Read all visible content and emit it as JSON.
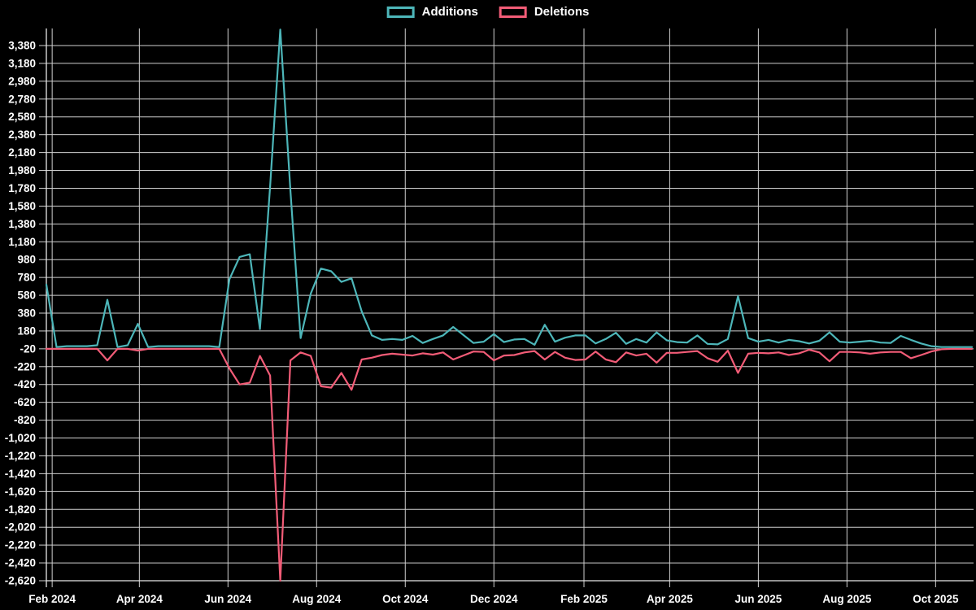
{
  "legend": {
    "additions_label": "Additions",
    "deletions_label": "Deletions"
  },
  "colors": {
    "background": "#000000",
    "additions": "#4db6b9",
    "deletions": "#f25c77",
    "grid": "#cfcfcf",
    "axis": "#e8e8e8",
    "label": "#ffffff"
  },
  "chart_data": {
    "type": "line",
    "title": "",
    "xlabel": "",
    "ylabel": "",
    "grid": true,
    "legend_position": "top-center",
    "ylim": [
      -2620,
      3560
    ],
    "y_ticks": [
      3380,
      3180,
      2980,
      2780,
      2580,
      2380,
      2180,
      1980,
      1780,
      1580,
      1380,
      1180,
      980,
      780,
      580,
      380,
      180,
      -20,
      -220,
      -420,
      -620,
      -820,
      -1020,
      -1220,
      -1420,
      -1620,
      -1820,
      -2020,
      -2220,
      -2420,
      -2620
    ],
    "x_ticks": [
      {
        "label": "Feb 2024",
        "week": 0.571
      },
      {
        "label": "Apr 2024",
        "week": 9.143
      },
      {
        "label": "Jun 2024",
        "week": 17.857
      },
      {
        "label": "Aug 2024",
        "week": 26.571
      },
      {
        "label": "Oct 2024",
        "week": 35.286
      },
      {
        "label": "Dec 2024",
        "week": 44.0
      },
      {
        "label": "Feb 2025",
        "week": 52.857
      },
      {
        "label": "Apr 2025",
        "week": 61.286
      },
      {
        "label": "Jun 2025",
        "week": 70.0
      },
      {
        "label": "Aug 2025",
        "week": 78.714
      },
      {
        "label": "Oct 2025",
        "week": 87.429
      }
    ],
    "x": [
      "2024-01-28",
      "2024-02-04",
      "2024-02-11",
      "2024-02-18",
      "2024-02-25",
      "2024-03-03",
      "2024-03-10",
      "2024-03-17",
      "2024-03-24",
      "2024-03-31",
      "2024-04-07",
      "2024-04-14",
      "2024-04-21",
      "2024-04-28",
      "2024-05-05",
      "2024-05-12",
      "2024-05-19",
      "2024-05-26",
      "2024-06-02",
      "2024-06-09",
      "2024-06-16",
      "2024-06-23",
      "2024-06-30",
      "2024-07-07",
      "2024-07-14",
      "2024-07-21",
      "2024-07-28",
      "2024-08-04",
      "2024-08-11",
      "2024-08-18",
      "2024-08-25",
      "2024-09-01",
      "2024-09-08",
      "2024-09-15",
      "2024-09-22",
      "2024-09-29",
      "2024-10-06",
      "2024-10-13",
      "2024-10-20",
      "2024-10-27",
      "2024-11-03",
      "2024-11-10",
      "2024-11-17",
      "2024-11-24",
      "2024-12-01",
      "2024-12-08",
      "2024-12-15",
      "2024-12-22",
      "2024-12-29",
      "2025-01-05",
      "2025-01-12",
      "2025-01-19",
      "2025-01-26",
      "2025-02-02",
      "2025-02-09",
      "2025-02-16",
      "2025-02-23",
      "2025-03-02",
      "2025-03-09",
      "2025-03-16",
      "2025-03-23",
      "2025-03-30",
      "2025-04-06",
      "2025-04-13",
      "2025-04-20",
      "2025-04-27",
      "2025-05-04",
      "2025-05-11",
      "2025-05-18",
      "2025-05-25",
      "2025-06-01",
      "2025-06-08",
      "2025-06-15",
      "2025-06-22",
      "2025-06-29",
      "2025-07-06",
      "2025-07-13",
      "2025-07-20",
      "2025-07-27",
      "2025-08-03",
      "2025-08-10",
      "2025-08-17",
      "2025-08-24",
      "2025-08-31",
      "2025-09-07",
      "2025-09-14",
      "2025-09-21",
      "2025-09-28",
      "2025-10-05",
      "2025-10-12",
      "2025-10-19",
      "2025-10-26"
    ],
    "series": [
      {
        "name": "Additions",
        "color": "#4db6b9",
        "values": [
          700,
          0,
          10,
          10,
          10,
          20,
          530,
          0,
          20,
          260,
          0,
          10,
          10,
          10,
          10,
          10,
          10,
          0,
          760,
          1010,
          1040,
          200,
          1800,
          3560,
          1750,
          100,
          600,
          880,
          850,
          730,
          770,
          400,
          130,
          80,
          90,
          80,
          125,
          45,
          90,
          130,
          225,
          135,
          45,
          60,
          145,
          55,
          85,
          90,
          25,
          250,
          60,
          105,
          130,
          130,
          40,
          90,
          160,
          35,
          90,
          50,
          165,
          75,
          55,
          50,
          130,
          35,
          30,
          90,
          570,
          100,
          60,
          80,
          50,
          80,
          65,
          40,
          70,
          165,
          60,
          50,
          60,
          70,
          50,
          45,
          125,
          80,
          40,
          10,
          0,
          0,
          0,
          0
        ]
      },
      {
        "name": "Deletions",
        "color": "#f25c77",
        "values": [
          -20,
          -20,
          -20,
          -20,
          -20,
          -20,
          -150,
          -20,
          -20,
          -40,
          -20,
          -20,
          -20,
          -20,
          -20,
          -20,
          -20,
          -20,
          -240,
          -420,
          -400,
          -100,
          -320,
          -2620,
          -150,
          -60,
          -100,
          -440,
          -455,
          -290,
          -480,
          -140,
          -120,
          -90,
          -75,
          -85,
          -95,
          -70,
          -85,
          -60,
          -140,
          -95,
          -50,
          -55,
          -150,
          -95,
          -90,
          -60,
          -45,
          -140,
          -55,
          -120,
          -145,
          -140,
          -50,
          -140,
          -170,
          -60,
          -95,
          -75,
          -175,
          -65,
          -65,
          -55,
          -45,
          -125,
          -165,
          -40,
          -290,
          -75,
          -65,
          -70,
          -60,
          -90,
          -70,
          -30,
          -60,
          -160,
          -55,
          -55,
          -60,
          -75,
          -60,
          -55,
          -55,
          -125,
          -90,
          -50,
          -25,
          -20,
          -20,
          -20
        ]
      }
    ]
  }
}
